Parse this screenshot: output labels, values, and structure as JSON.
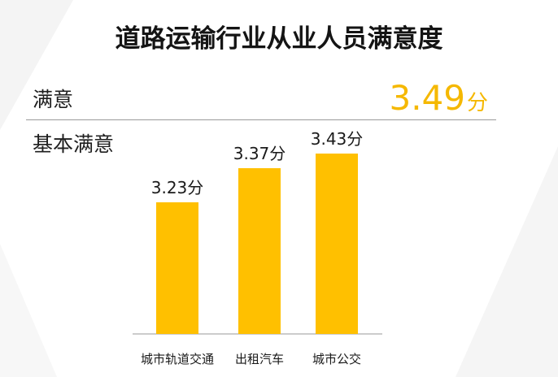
{
  "title": "道路运输行业从业人员满意度",
  "levels": {
    "high": "满意",
    "mid": "基本满意"
  },
  "overall": {
    "value": "3.49",
    "unit": "分"
  },
  "colors": {
    "bar": "#ffc000",
    "accent": "#f5b800",
    "axis": "#9a9a9a"
  },
  "chart_data": {
    "type": "bar",
    "categories": [
      "城市轨道交通",
      "出租汽车",
      "城市公交"
    ],
    "values": [
      3.23,
      3.37,
      3.43
    ],
    "data_labels": [
      "3.23分",
      "3.37分",
      "3.43分"
    ],
    "title": "道路运输行业从业人员满意度",
    "xlabel": "",
    "ylabel": "",
    "grid": false,
    "legend": "none"
  }
}
